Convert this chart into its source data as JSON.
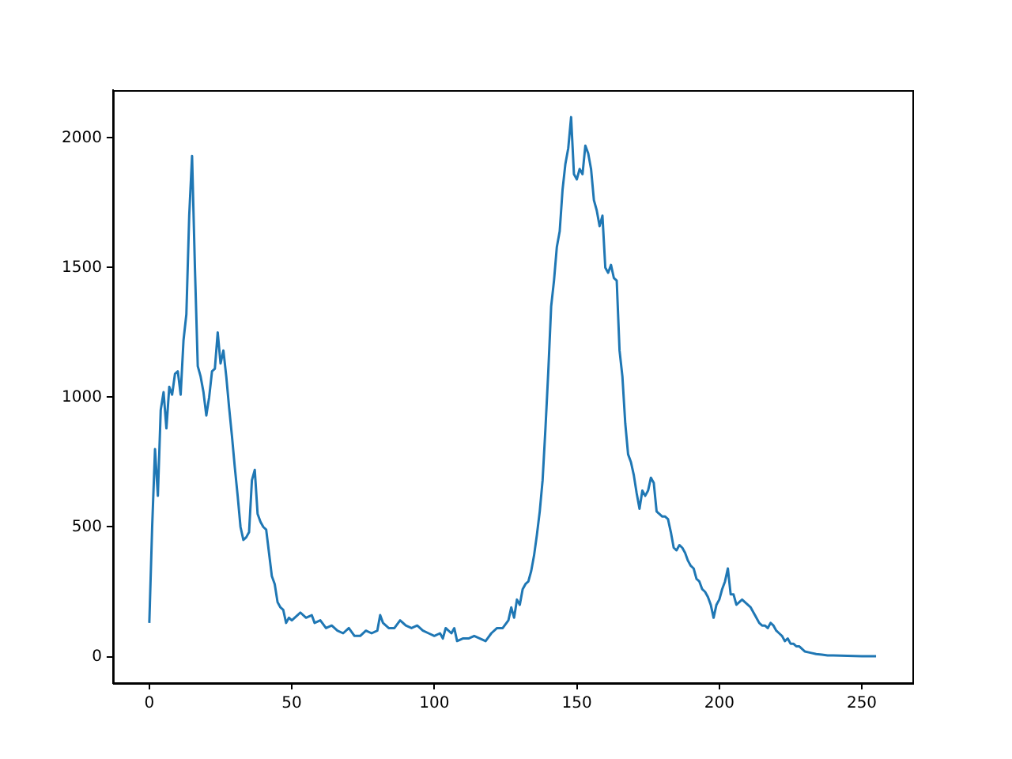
{
  "chart_data": {
    "type": "line",
    "x": [
      0,
      1,
      2,
      3,
      4,
      5,
      6,
      7,
      8,
      9,
      10,
      11,
      12,
      13,
      14,
      15,
      16,
      17,
      18,
      19,
      20,
      21,
      22,
      23,
      24,
      25,
      26,
      27,
      28,
      29,
      30,
      31,
      32,
      33,
      34,
      35,
      36,
      37,
      38,
      39,
      40,
      41,
      42,
      43,
      44,
      45,
      46,
      47,
      48,
      49,
      50,
      52,
      53,
      55,
      57,
      58,
      60,
      62,
      64,
      66,
      68,
      70,
      72,
      74,
      76,
      78,
      80,
      81,
      82,
      84,
      86,
      88,
      90,
      92,
      94,
      96,
      98,
      100,
      102,
      103,
      104,
      106,
      107,
      108,
      110,
      112,
      114,
      116,
      118,
      120,
      122,
      124,
      126,
      127,
      128,
      129,
      130,
      131,
      132,
      133,
      134,
      135,
      136,
      137,
      138,
      139,
      140,
      141,
      142,
      143,
      144,
      145,
      146,
      147,
      148,
      149,
      150,
      151,
      152,
      153,
      154,
      155,
      156,
      157,
      158,
      159,
      160,
      161,
      162,
      163,
      164,
      165,
      166,
      167,
      168,
      169,
      170,
      171,
      172,
      173,
      174,
      175,
      176,
      177,
      178,
      179,
      180,
      181,
      182,
      183,
      184,
      185,
      186,
      187,
      188,
      189,
      190,
      191,
      192,
      193,
      194,
      195,
      196,
      197,
      198,
      199,
      200,
      201,
      202,
      203,
      204,
      205,
      206,
      207,
      208,
      209,
      210,
      211,
      212,
      213,
      214,
      215,
      216,
      217,
      218,
      219,
      220,
      221,
      222,
      223,
      224,
      225,
      226,
      227,
      228,
      229,
      230,
      232,
      234,
      236,
      238,
      240,
      245,
      250,
      255
    ],
    "series": [
      {
        "color": "#1f77b4",
        "values": [
          130,
          500,
          800,
          620,
          950,
          1020,
          880,
          1040,
          1010,
          1090,
          1100,
          1010,
          1220,
          1320,
          1700,
          1930,
          1500,
          1120,
          1080,
          1020,
          930,
          1000,
          1100,
          1110,
          1250,
          1130,
          1180,
          1080,
          960,
          850,
          730,
          620,
          500,
          450,
          460,
          480,
          680,
          720,
          550,
          520,
          500,
          490,
          400,
          310,
          280,
          210,
          190,
          180,
          130,
          150,
          140,
          160,
          170,
          150,
          160,
          130,
          140,
          110,
          120,
          100,
          90,
          110,
          80,
          80,
          100,
          90,
          100,
          160,
          130,
          110,
          110,
          140,
          120,
          110,
          120,
          100,
          90,
          80,
          90,
          70,
          110,
          90,
          110,
          60,
          70,
          70,
          80,
          70,
          60,
          90,
          110,
          110,
          140,
          190,
          150,
          220,
          200,
          260,
          280,
          290,
          330,
          390,
          470,
          560,
          680,
          880,
          1100,
          1350,
          1450,
          1580,
          1640,
          1800,
          1900,
          1960,
          2080,
          1860,
          1840,
          1880,
          1860,
          1970,
          1940,
          1880,
          1760,
          1720,
          1660,
          1700,
          1500,
          1480,
          1510,
          1460,
          1450,
          1180,
          1080,
          900,
          780,
          750,
          700,
          630,
          570,
          640,
          620,
          640,
          690,
          670,
          560,
          550,
          540,
          540,
          530,
          480,
          420,
          410,
          430,
          420,
          400,
          370,
          350,
          340,
          300,
          290,
          260,
          250,
          230,
          200,
          150,
          200,
          220,
          260,
          290,
          340,
          240,
          240,
          200,
          210,
          220,
          210,
          200,
          190,
          170,
          150,
          130,
          120,
          120,
          110,
          130,
          120,
          100,
          90,
          80,
          60,
          70,
          50,
          50,
          40,
          40,
          30,
          20,
          15,
          10,
          8,
          5,
          5,
          3,
          2,
          2
        ]
      }
    ],
    "xlim": [
      -12.75,
      267.75
    ],
    "ylim": [
      -102,
      2184
    ],
    "xticks": [
      0,
      50,
      100,
      150,
      200,
      250
    ],
    "yticks": [
      0,
      500,
      1000,
      1500,
      2000
    ],
    "grid": false,
    "legend": false,
    "marker": "none",
    "line_style": "solid"
  }
}
